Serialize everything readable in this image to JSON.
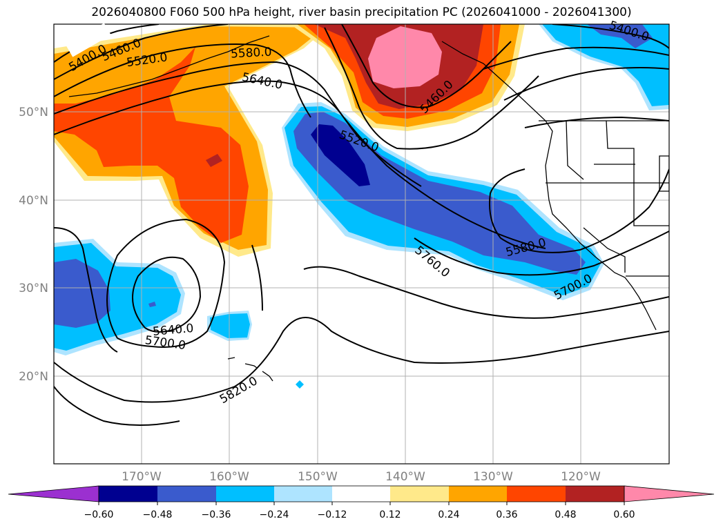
{
  "title": "2026040800 F060 500 hPa height, river basin precipitation PC (2026041000 - 2026041300)",
  "map": {
    "lat_labels": [
      "50°N",
      "40°N",
      "30°N",
      "20°N"
    ],
    "lon_labels": [
      "170°W",
      "160°W",
      "150°W",
      "140°W",
      "130°W",
      "120°W"
    ],
    "contour_labels": [
      "5400.0",
      "5460.0",
      "5520.0",
      "5580.0",
      "5640.0",
      "5460.0",
      "5520.0",
      "5400.0",
      "5580.0",
      "5700.0",
      "5760.0",
      "5640.0",
      "5700.0",
      "5820.0"
    ]
  },
  "colorbar": {
    "colors": [
      "#9b30d0",
      "#000090",
      "#3a5bcd",
      "#00bfff",
      "#aee4ff",
      "#ffffff",
      "#ffe98a",
      "#ffa500",
      "#ff4500",
      "#b22222",
      "#ff88aa"
    ],
    "tick_labels": [
      "−0.60",
      "−0.48",
      "−0.36",
      "−0.24",
      "−0.12",
      "0.12",
      "0.24",
      "0.36",
      "0.48",
      "0.60"
    ]
  }
}
